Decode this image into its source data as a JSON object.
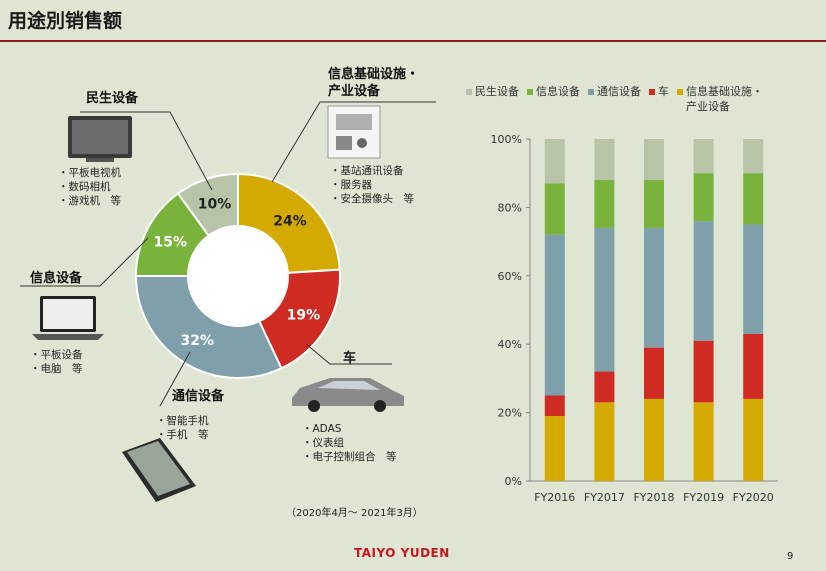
{
  "page": {
    "title": "用途別销售额",
    "period_note": "（2020年4月〜 2021年3月）",
    "logo_text": "TAIYO YUDEN",
    "page_number": "9"
  },
  "donut": {
    "segments": [
      {
        "name": "信息基础设施・产业设备",
        "label": "24%",
        "value": 24,
        "color": "#d4a900"
      },
      {
        "name": "车",
        "label": "19%",
        "value": 19,
        "color": "#d02b22"
      },
      {
        "name": "通信设备",
        "label": "32%",
        "value": 32,
        "color": "#7fa0aa"
      },
      {
        "name": "信息设备",
        "label": "15%",
        "value": 15,
        "color": "#7ab33c"
      },
      {
        "name": "民生设备",
        "label": "10%",
        "value": 10,
        "color": "#b7c4a8"
      }
    ]
  },
  "callouts": {
    "consumer": {
      "title": "民生设备",
      "items": [
        "・平板电视机",
        "・数码相机",
        "・游戏机　等"
      ]
    },
    "info": {
      "title": "信息设备",
      "items": [
        "・平板设备",
        "・电脑　等"
      ]
    },
    "comm": {
      "title": "通信设备",
      "items": [
        "・智能手机",
        "・手机　等"
      ]
    },
    "infra": {
      "title_line1": "信息基础设施・",
      "title_line2": "产业设备",
      "items": [
        "・基站通讯设备",
        "・服务器",
        "・安全摄像头　等"
      ]
    },
    "car": {
      "title": "车",
      "items": [
        "・ADAS",
        "・仪表组",
        "・电子控制组合　等"
      ]
    }
  },
  "chart_data": [
    {
      "type": "pie",
      "categories": [
        "信息基础设施・产业设备",
        "车",
        "通信设备",
        "信息设备",
        "民生设备"
      ],
      "values": [
        24,
        19,
        32,
        15,
        10
      ]
    },
    {
      "type": "bar",
      "stacked": true,
      "categories": [
        "FY2016",
        "FY2017",
        "FY2018",
        "FY2019",
        "FY2020"
      ],
      "ylim": [
        0,
        100
      ],
      "yticks": [
        "0%",
        "20%",
        "40%",
        "60%",
        "80%",
        "100%"
      ],
      "legend_position": "top",
      "grid": false,
      "series": [
        {
          "name": "信息基础设施・产业设备",
          "color": "#d4a900",
          "values": [
            19,
            23,
            24,
            23,
            24
          ]
        },
        {
          "name": "车",
          "color": "#d02b22",
          "values": [
            6,
            9,
            15,
            18,
            19
          ]
        },
        {
          "name": "通信设备",
          "color": "#7fa0aa",
          "values": [
            47,
            42,
            35,
            35,
            32
          ]
        },
        {
          "name": "信息设备",
          "color": "#7ab33c",
          "values": [
            15,
            14,
            14,
            14,
            15
          ]
        },
        {
          "name": "民生设备",
          "color": "#b7c4a8",
          "values": [
            13,
            12,
            12,
            10,
            10
          ]
        }
      ],
      "legend": [
        {
          "label": "民生设备",
          "color": "#b7c4a8"
        },
        {
          "label": "信息设备",
          "color": "#7ab33c"
        },
        {
          "label": "通信设备",
          "color": "#7fa0aa"
        },
        {
          "label": "车",
          "color": "#d02b22"
        },
        {
          "label_line1": "信息基础设施・",
          "label_line2": "产业设备",
          "color": "#d4a900"
        }
      ]
    }
  ]
}
